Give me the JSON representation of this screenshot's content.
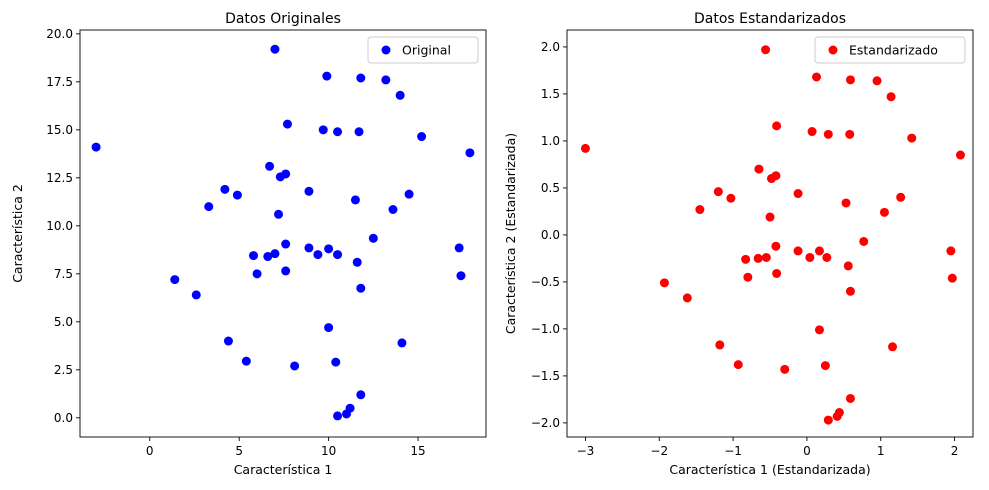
{
  "chart_data": [
    {
      "type": "scatter",
      "title": "Datos Originales",
      "xlabel": "Característica 1",
      "ylabel": "Característica 2",
      "xlim": [
        -3.9,
        18.8
      ],
      "ylim": [
        -1.0,
        20.2
      ],
      "xticks": [
        0,
        5,
        10,
        15
      ],
      "yticks": [
        0.0,
        2.5,
        5.0,
        7.5,
        10.0,
        12.5,
        15.0,
        17.5,
        20.0
      ],
      "ytick_labels": [
        "0.0",
        "2.5",
        "5.0",
        "7.5",
        "10.0",
        "12.5",
        "15.0",
        "17.5",
        "20.0"
      ],
      "xtick_labels": [
        "0",
        "5",
        "10",
        "15"
      ],
      "legend": {
        "label": "Original",
        "position": "top-right"
      },
      "color": "#0000ff",
      "series": [
        {
          "name": "Original",
          "points": [
            [
              -3.0,
              14.1
            ],
            [
              1.4,
              7.2
            ],
            [
              2.6,
              6.4
            ],
            [
              3.3,
              11.0
            ],
            [
              4.2,
              11.9
            ],
            [
              4.4,
              4.0
            ],
            [
              4.9,
              11.6
            ],
            [
              5.4,
              2.95
            ],
            [
              5.8,
              8.45
            ],
            [
              6.0,
              7.5
            ],
            [
              6.6,
              8.4
            ],
            [
              6.7,
              13.1
            ],
            [
              7.0,
              19.2
            ],
            [
              7.0,
              8.55
            ],
            [
              7.2,
              10.6
            ],
            [
              7.3,
              12.55
            ],
            [
              7.6,
              12.7
            ],
            [
              7.6,
              9.05
            ],
            [
              7.6,
              7.65
            ],
            [
              7.7,
              15.3
            ],
            [
              8.1,
              2.7
            ],
            [
              8.9,
              11.8
            ],
            [
              8.9,
              8.85
            ],
            [
              9.4,
              8.5
            ],
            [
              9.7,
              15.0
            ],
            [
              9.9,
              17.8
            ],
            [
              10.0,
              4.7
            ],
            [
              10.0,
              8.8
            ],
            [
              10.4,
              2.9
            ],
            [
              10.5,
              0.1
            ],
            [
              10.5,
              14.9
            ],
            [
              10.5,
              8.5
            ],
            [
              11.0,
              0.2
            ],
            [
              11.2,
              0.5
            ],
            [
              11.5,
              11.35
            ],
            [
              11.6,
              8.1
            ],
            [
              11.7,
              14.9
            ],
            [
              11.8,
              17.7
            ],
            [
              11.8,
              6.75
            ],
            [
              11.8,
              1.2
            ],
            [
              12.5,
              9.35
            ],
            [
              13.2,
              17.6
            ],
            [
              13.6,
              10.85
            ],
            [
              14.0,
              16.8
            ],
            [
              14.1,
              3.9
            ],
            [
              14.5,
              11.65
            ],
            [
              15.2,
              14.65
            ],
            [
              17.3,
              8.85
            ],
            [
              17.4,
              7.4
            ],
            [
              17.9,
              13.8
            ]
          ]
        }
      ]
    },
    {
      "type": "scatter",
      "title": "Datos Estandarizados",
      "xlabel": "Característica 1 (Estandarizada)",
      "ylabel": "Característica 2 (Estandarizada)",
      "xlim": [
        -3.25,
        2.25
      ],
      "ylim": [
        -2.15,
        2.18
      ],
      "xticks": [
        -3,
        -2,
        -1,
        0,
        1,
        2
      ],
      "xtick_labels": [
        "−3",
        "−2",
        "−1",
        "0",
        "1",
        "2"
      ],
      "yticks": [
        -2.0,
        -1.5,
        -1.0,
        -0.5,
        0.0,
        0.5,
        1.0,
        1.5,
        2.0
      ],
      "ytick_labels": [
        "−2.0",
        "−1.5",
        "−1.0",
        "−0.5",
        "0.0",
        "0.5",
        "1.0",
        "1.5",
        "2.0"
      ],
      "legend": {
        "label": "Estandarizado",
        "position": "top-right"
      },
      "color": "#ff0000",
      "series": [
        {
          "name": "Estandarizado",
          "points": [
            [
              -3.0,
              0.92
            ],
            [
              -1.93,
              -0.51
            ],
            [
              -1.62,
              -0.67
            ],
            [
              -1.45,
              0.27
            ],
            [
              -1.2,
              0.46
            ],
            [
              -1.18,
              -1.17
            ],
            [
              -1.03,
              0.39
            ],
            [
              -0.93,
              -1.38
            ],
            [
              -0.83,
              -0.26
            ],
            [
              -0.8,
              -0.45
            ],
            [
              -0.66,
              -0.25
            ],
            [
              -0.65,
              0.7
            ],
            [
              -0.56,
              1.97
            ],
            [
              -0.55,
              -0.24
            ],
            [
              -0.5,
              0.19
            ],
            [
              -0.48,
              0.6
            ],
            [
              -0.42,
              0.63
            ],
            [
              -0.42,
              -0.12
            ],
            [
              -0.41,
              1.16
            ],
            [
              -0.41,
              -0.41
            ],
            [
              -0.3,
              -1.43
            ],
            [
              -0.12,
              0.44
            ],
            [
              -0.12,
              -0.17
            ],
            [
              0.04,
              -0.24
            ],
            [
              0.07,
              1.1
            ],
            [
              0.13,
              1.68
            ],
            [
              0.17,
              -1.01
            ],
            [
              0.17,
              -0.17
            ],
            [
              0.25,
              -1.39
            ],
            [
              0.27,
              -0.24
            ],
            [
              0.29,
              1.07
            ],
            [
              0.29,
              -1.97
            ],
            [
              0.41,
              -1.93
            ],
            [
              0.44,
              -1.89
            ],
            [
              0.53,
              0.34
            ],
            [
              0.56,
              -0.33
            ],
            [
              0.58,
              1.07
            ],
            [
              0.59,
              1.65
            ],
            [
              0.59,
              -0.6
            ],
            [
              0.59,
              -1.74
            ],
            [
              0.77,
              -0.07
            ],
            [
              0.95,
              1.64
            ],
            [
              1.05,
              0.24
            ],
            [
              1.14,
              1.47
            ],
            [
              1.16,
              -1.19
            ],
            [
              1.27,
              0.4
            ],
            [
              1.42,
              1.03
            ],
            [
              1.95,
              -0.17
            ],
            [
              1.97,
              -0.46
            ],
            [
              2.08,
              0.85
            ]
          ]
        }
      ]
    }
  ]
}
